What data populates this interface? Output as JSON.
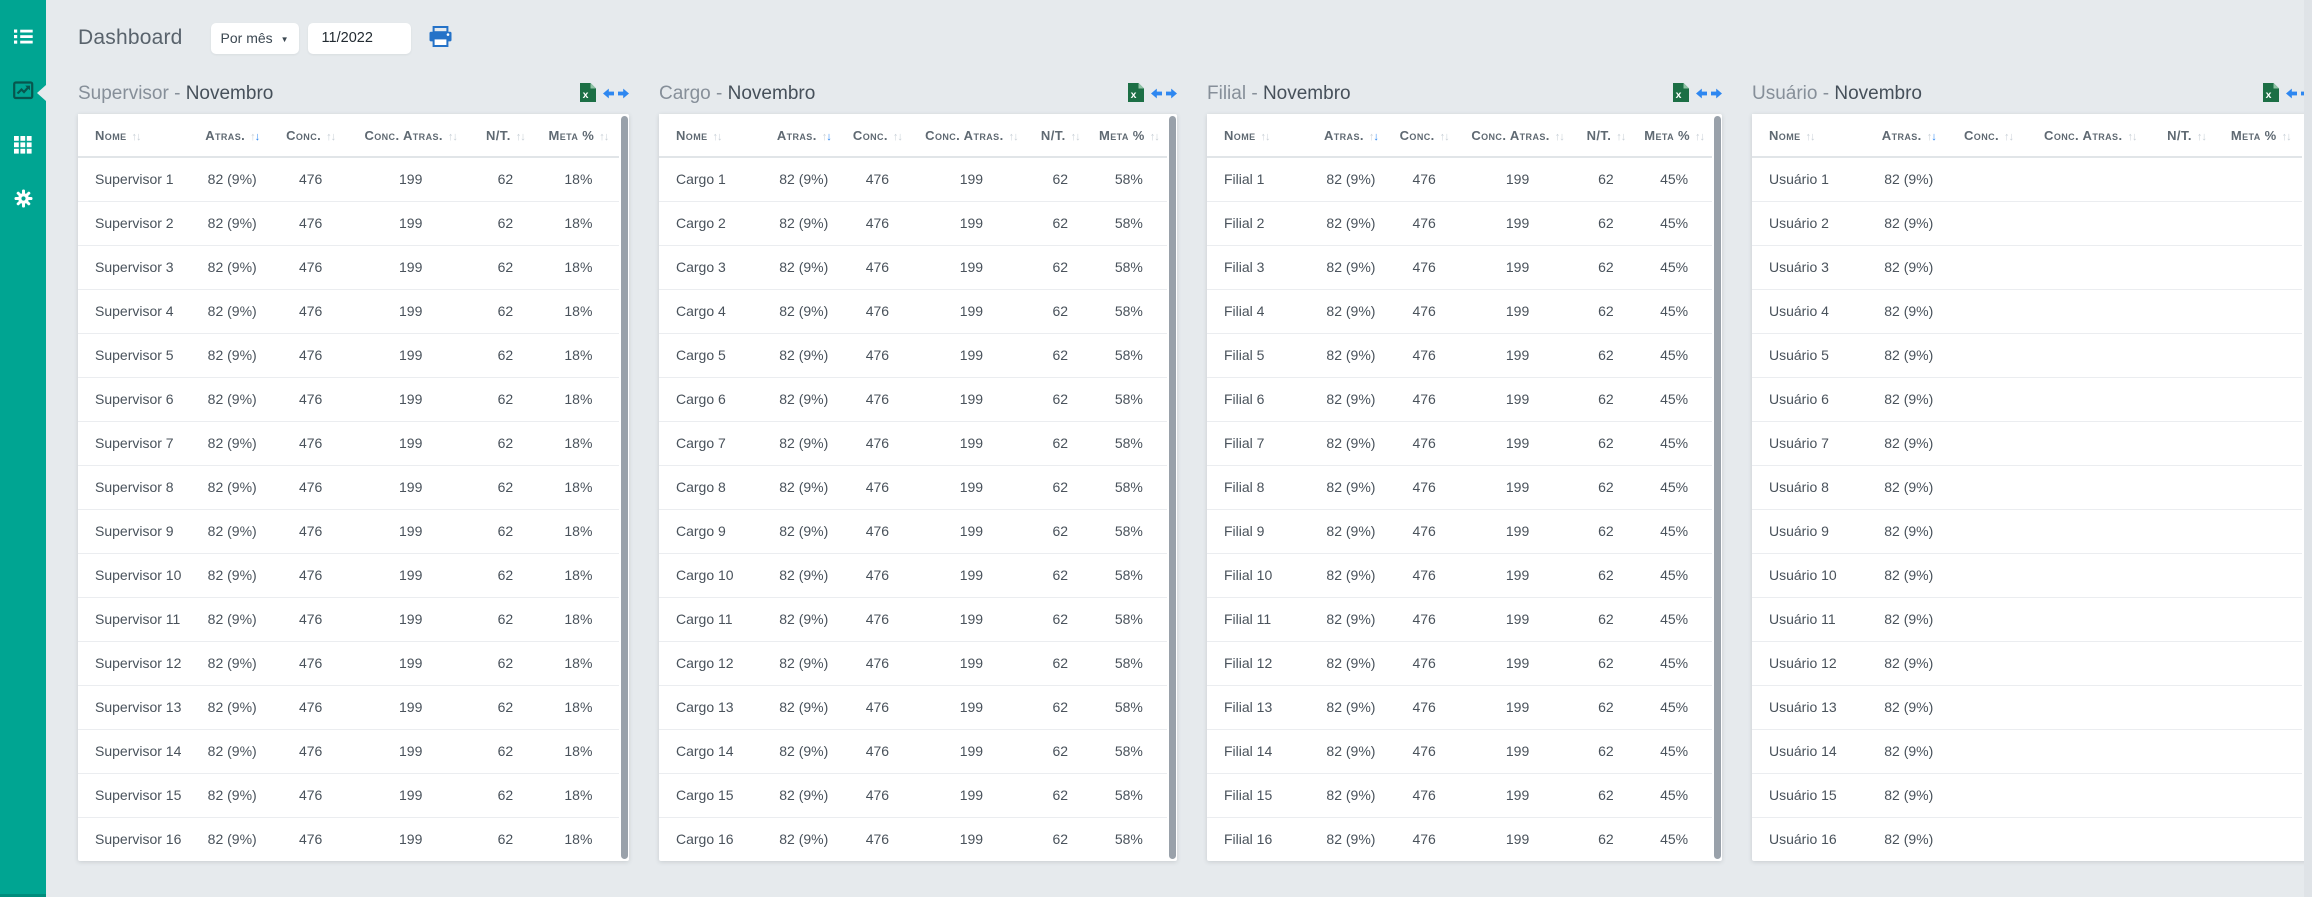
{
  "colors": {
    "sidebar_teal": "#00a592",
    "sidebar_active_icon": "#07564e",
    "background": "#e6eaed",
    "accent_blue": "#2e87f0",
    "print_blue": "#2472c8",
    "excel_green": "#1c6f45",
    "scroll_thumb": "#99a1aa"
  },
  "sidebar": {
    "items": [
      {
        "name": "menu-list",
        "icon": "list-icon",
        "active": false
      },
      {
        "name": "dashboards",
        "icon": "line-chart-icon",
        "active": true
      },
      {
        "name": "modules",
        "icon": "grid-icon",
        "active": false
      },
      {
        "name": "settings",
        "icon": "gear-icon",
        "active": false
      }
    ]
  },
  "header": {
    "title": "Dashboard",
    "period_select": {
      "value": "Por mês",
      "caret": "▼"
    },
    "month_input": {
      "value": "11/2022"
    },
    "print_icon": "printer-icon"
  },
  "columns": [
    {
      "key": "nome",
      "label": "Nome",
      "sort": "inactive"
    },
    {
      "key": "atras",
      "label": "Atras.",
      "sort": "desc"
    },
    {
      "key": "conc",
      "label": "Conc.",
      "sort": "inactive"
    },
    {
      "key": "conc_atras",
      "label": "Conc. Atras.",
      "sort": "inactive"
    },
    {
      "key": "nt",
      "label": "N/T.",
      "sort": "inactive"
    },
    {
      "key": "meta",
      "label": "Meta %",
      "sort": "inactive"
    }
  ],
  "panels": [
    {
      "id": "supervisor",
      "title_prefix": "Supervisor - ",
      "title_month": "Novembro",
      "tools": [
        "excel-export-icon",
        "horizontal-resize-icon"
      ],
      "row_names": [
        "Supervisor 1",
        "Supervisor 2",
        "Supervisor 3",
        "Supervisor 4",
        "Supervisor 5",
        "Supervisor 6",
        "Supervisor 7",
        "Supervisor 8",
        "Supervisor 9",
        "Supervisor 10",
        "Supervisor 11",
        "Supervisor 12",
        "Supervisor 13",
        "Supervisor 14",
        "Supervisor 15",
        "Supervisor 16"
      ],
      "row_values": [
        "82 (9%)",
        "476",
        "199",
        "62",
        "18%"
      ]
    },
    {
      "id": "cargo",
      "title_prefix": "Cargo - ",
      "title_month": "Novembro",
      "tools": [
        "excel-export-icon",
        "horizontal-resize-icon"
      ],
      "row_names": [
        "Cargo 1",
        "Cargo 2",
        "Cargo 3",
        "Cargo 4",
        "Cargo 5",
        "Cargo 6",
        "Cargo 7",
        "Cargo 8",
        "Cargo 9",
        "Cargo 10",
        "Cargo 11",
        "Cargo 12",
        "Cargo 13",
        "Cargo 14",
        "Cargo 15",
        "Cargo 16"
      ],
      "row_values": [
        "82 (9%)",
        "476",
        "199",
        "62",
        "58%"
      ]
    },
    {
      "id": "filial",
      "title_prefix": "Filial - ",
      "title_month": "Novembro",
      "tools": [
        "excel-export-icon",
        "horizontal-resize-icon"
      ],
      "row_names": [
        "Filial 1",
        "Filial 2",
        "Filial 3",
        "Filial 4",
        "Filial 5",
        "Filial 6",
        "Filial 7",
        "Filial 8",
        "Filial 9",
        "Filial 10",
        "Filial 11",
        "Filial 12",
        "Filial 13",
        "Filial 14",
        "Filial 15",
        "Filial 16"
      ],
      "row_values": [
        "82 (9%)",
        "476",
        "199",
        "62",
        "45%"
      ]
    },
    {
      "id": "usuario",
      "title_prefix": "Usuário - ",
      "title_month": "Novembro",
      "tools": [
        "excel-export-icon",
        "horizontal-resize-icon"
      ],
      "row_names": [
        "Usuário 1",
        "Usuário 2",
        "Usuário 3",
        "Usuário 4",
        "Usuário 5",
        "Usuário 6",
        "Usuário 7",
        "Usuário 8",
        "Usuário 9",
        "Usuário 10",
        "Usuário 11",
        "Usuário 12",
        "Usuário 13",
        "Usuário 14",
        "Usuário 15",
        "Usuário 16"
      ],
      "row_values": [
        "82 (9%)",
        "",
        "",
        "",
        ""
      ]
    }
  ]
}
